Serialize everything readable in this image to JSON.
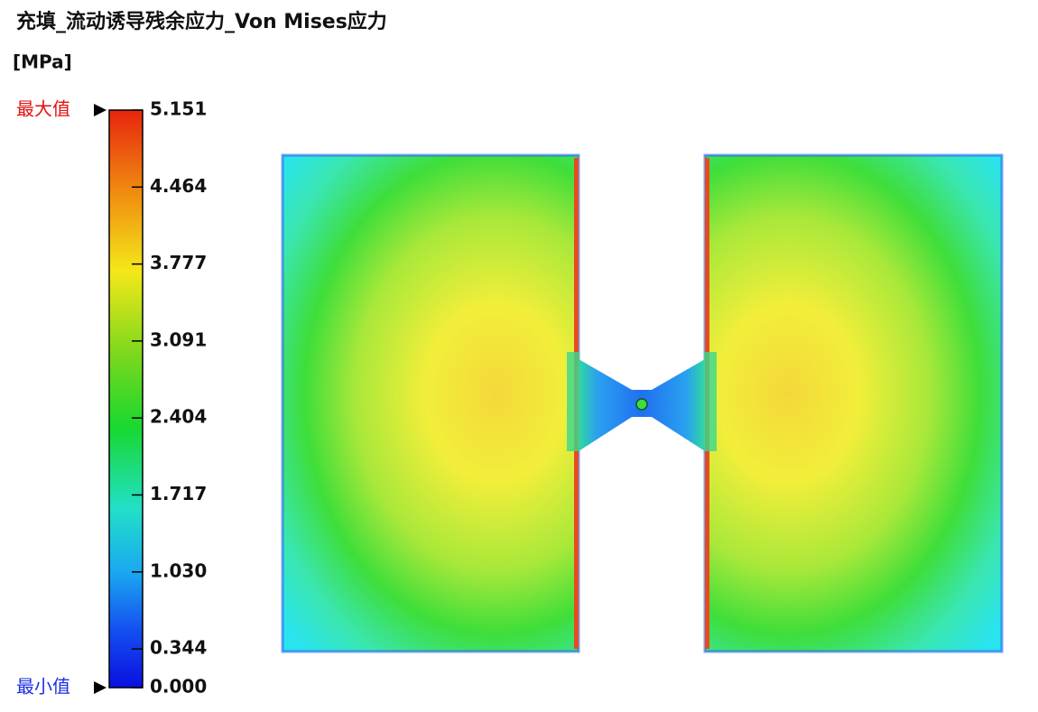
{
  "title": "充填_流动诱导残余应力_Von Mises应力",
  "unit": "[MPa]",
  "legend": {
    "max_label": "最大值",
    "min_label": "最小值",
    "ticks": [
      "5.151",
      "4.464",
      "3.777",
      "3.091",
      "2.404",
      "1.717",
      "1.030",
      "0.344",
      "0.000"
    ]
  }
}
